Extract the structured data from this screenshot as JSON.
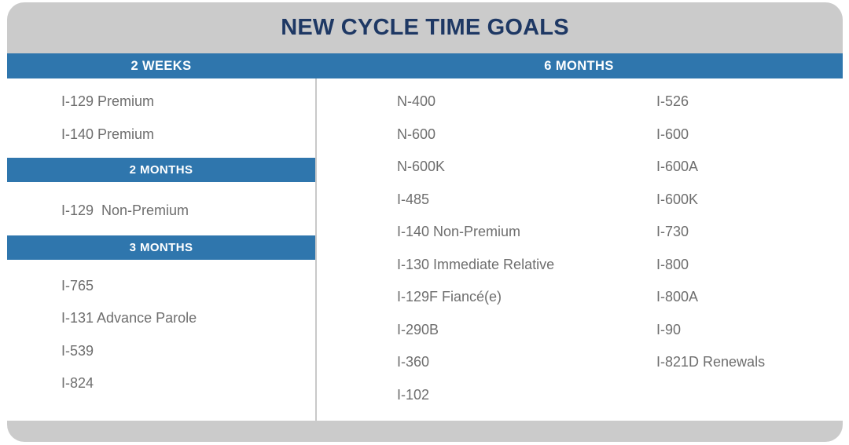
{
  "palette": {
    "header_gray": "#cbcbcb",
    "accent_blue": "#2f76ad",
    "title_navy": "#1e3864",
    "item_gray": "#6e6e6e",
    "divider_gray": "#c9c9c9"
  },
  "chart_data": {
    "type": "table",
    "title": "NEW CYCLE TIME GOALS",
    "groups": [
      {
        "goal": "2 WEEKS",
        "forms": [
          "I-129 Premium",
          "I-140 Premium"
        ]
      },
      {
        "goal": "2 MONTHS",
        "forms": [
          "I-129  Non-Premium"
        ]
      },
      {
        "goal": "3 MONTHS",
        "forms": [
          "I-765",
          "I-131 Advance Parole",
          "I-539",
          "I-824"
        ]
      },
      {
        "goal": "6 MONTHS",
        "forms": [
          "N-400",
          "N-600",
          "N-600K",
          "I-485",
          "I-140 Non-Premium",
          "I-130 Immediate Relative",
          "I-129F Fiancé(e)",
          "I-290B",
          "I-360",
          "I-102",
          "I-526",
          "I-600",
          "I-600A",
          "I-600K",
          "I-730",
          "I-800",
          "I-800A",
          "I-90",
          "I-821D Renewals"
        ]
      }
    ],
    "layout": {
      "six_months_column_break": 10,
      "legend_position": "none",
      "grid": false
    }
  }
}
